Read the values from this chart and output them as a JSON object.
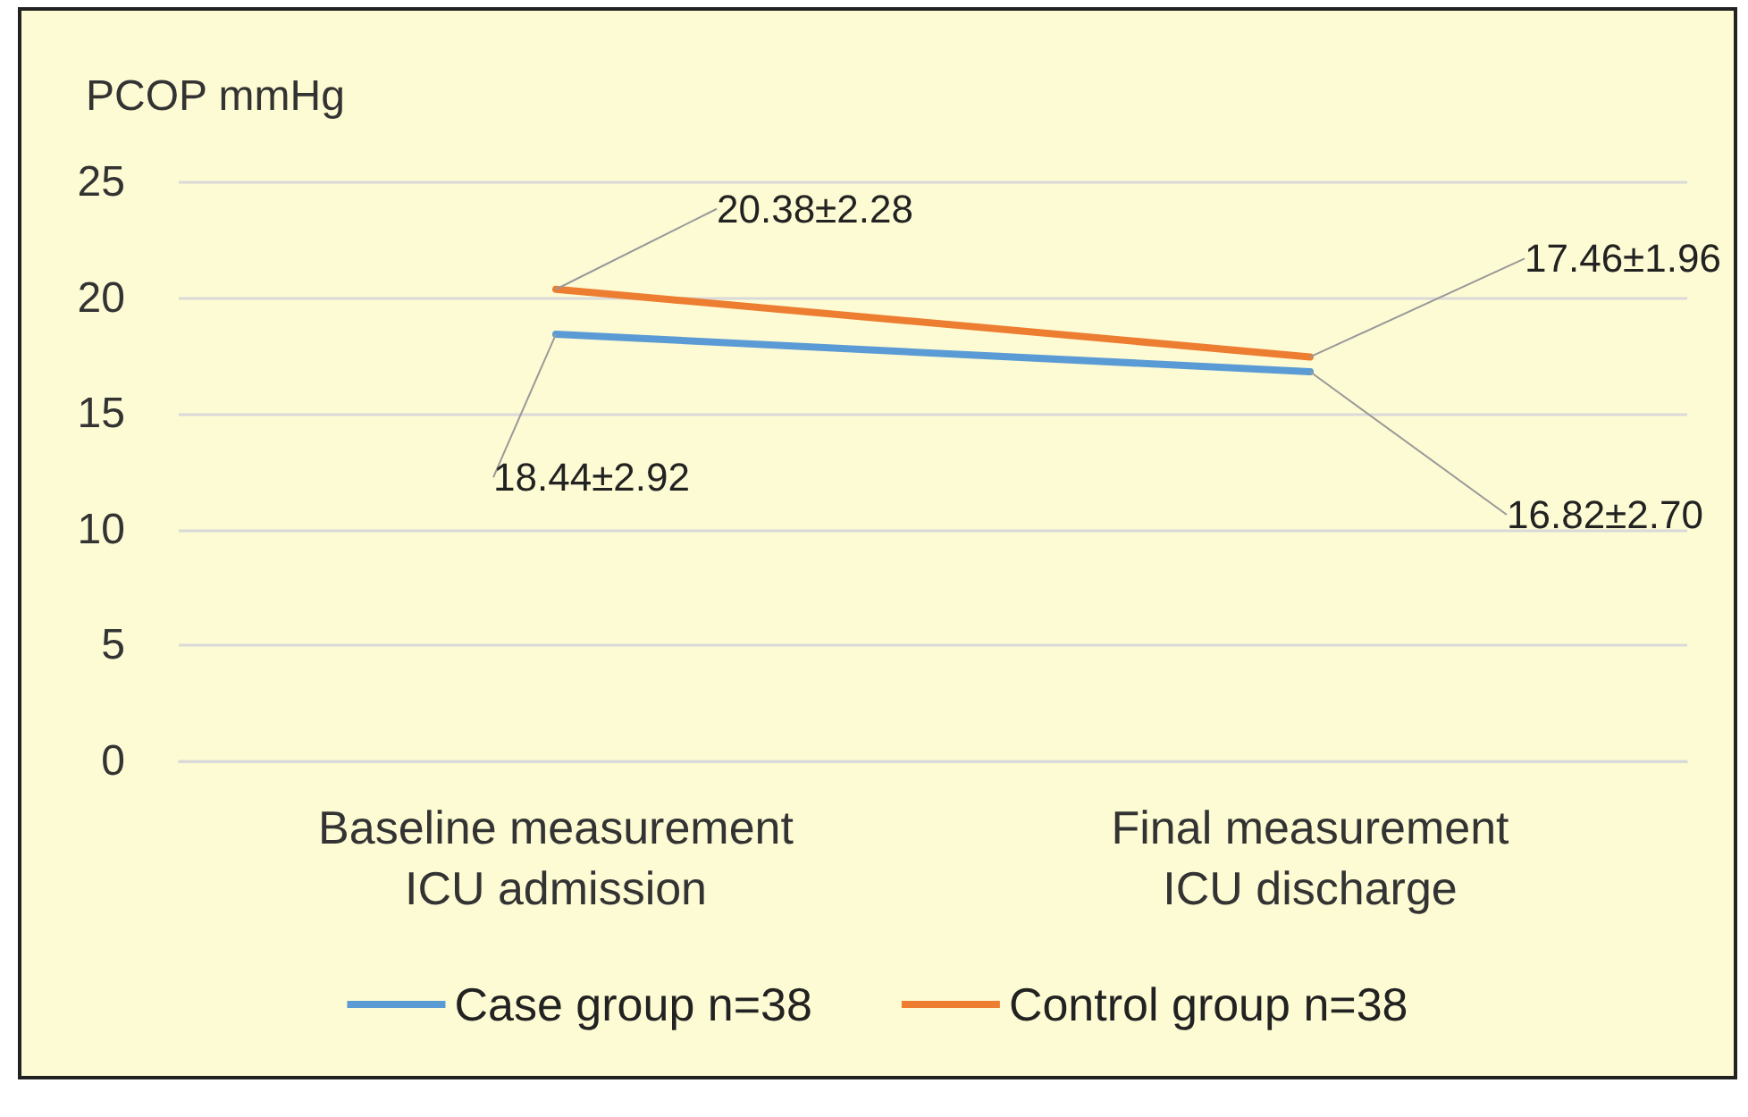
{
  "chart_data": {
    "type": "line",
    "ylabel": "PCOP mmHg",
    "categories": [
      "Baseline measurement\nICU admission",
      "Final measurement\nICU discharge"
    ],
    "series": [
      {
        "name": "Case group n=38",
        "color": "#5b9bd5",
        "values": [
          18.44,
          16.82
        ],
        "value_labels": [
          "18.44±2.92",
          "16.82±2.70"
        ]
      },
      {
        "name": "Control group n=38",
        "color": "#ed7d31",
        "values": [
          20.38,
          17.46
        ],
        "value_labels": [
          "20.38±2.28",
          "17.46±1.96"
        ]
      }
    ],
    "ylim": [
      0,
      25
    ],
    "yticks": [
      0,
      5,
      10,
      15,
      20,
      25
    ],
    "grid": "y",
    "legend": "bottom",
    "marker": "none",
    "line_style": "solid"
  }
}
